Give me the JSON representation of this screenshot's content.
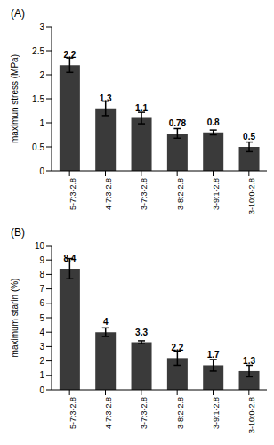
{
  "chart_data": [
    {
      "type": "bar",
      "title": "(A)",
      "ylabel": "maximun stress (MPa)",
      "categories": [
        "5-7:3-2.8",
        "4-7:3-2.8",
        "3-7:3-2.8",
        "3-8:2-2.8",
        "3-9:1-2.8",
        "3-10:0-2.8"
      ],
      "values": [
        2.2,
        1.3,
        1.1,
        0.78,
        0.8,
        0.5
      ],
      "errors": [
        0.15,
        0.15,
        0.12,
        0.1,
        0.05,
        0.1
      ],
      "color": "#3a3a3a",
      "ylim": [
        0,
        3
      ],
      "yticks": [
        0,
        0.5,
        1,
        1.5,
        2,
        2.5,
        3
      ],
      "grid": false,
      "data_labels": true
    },
    {
      "type": "bar",
      "title": "(B)",
      "ylabel": "maximum starin (%)",
      "categories": [
        "5-7:3-2.8",
        "4-7:3-2.8",
        "3-7:3-2.8",
        "3-8:2-2.8",
        "3-9:1-2.8",
        "3-10:0-2.8"
      ],
      "values": [
        8.4,
        4,
        3.3,
        2.2,
        1.7,
        1.3
      ],
      "errors": [
        0.7,
        0.3,
        0.1,
        0.5,
        0.4,
        0.4
      ],
      "color": "#3a3a3a",
      "ylim": [
        0,
        10
      ],
      "yticks": [
        0,
        1,
        2,
        3,
        4,
        5,
        6,
        7,
        8,
        9,
        10
      ],
      "grid": false,
      "data_labels": true
    }
  ]
}
